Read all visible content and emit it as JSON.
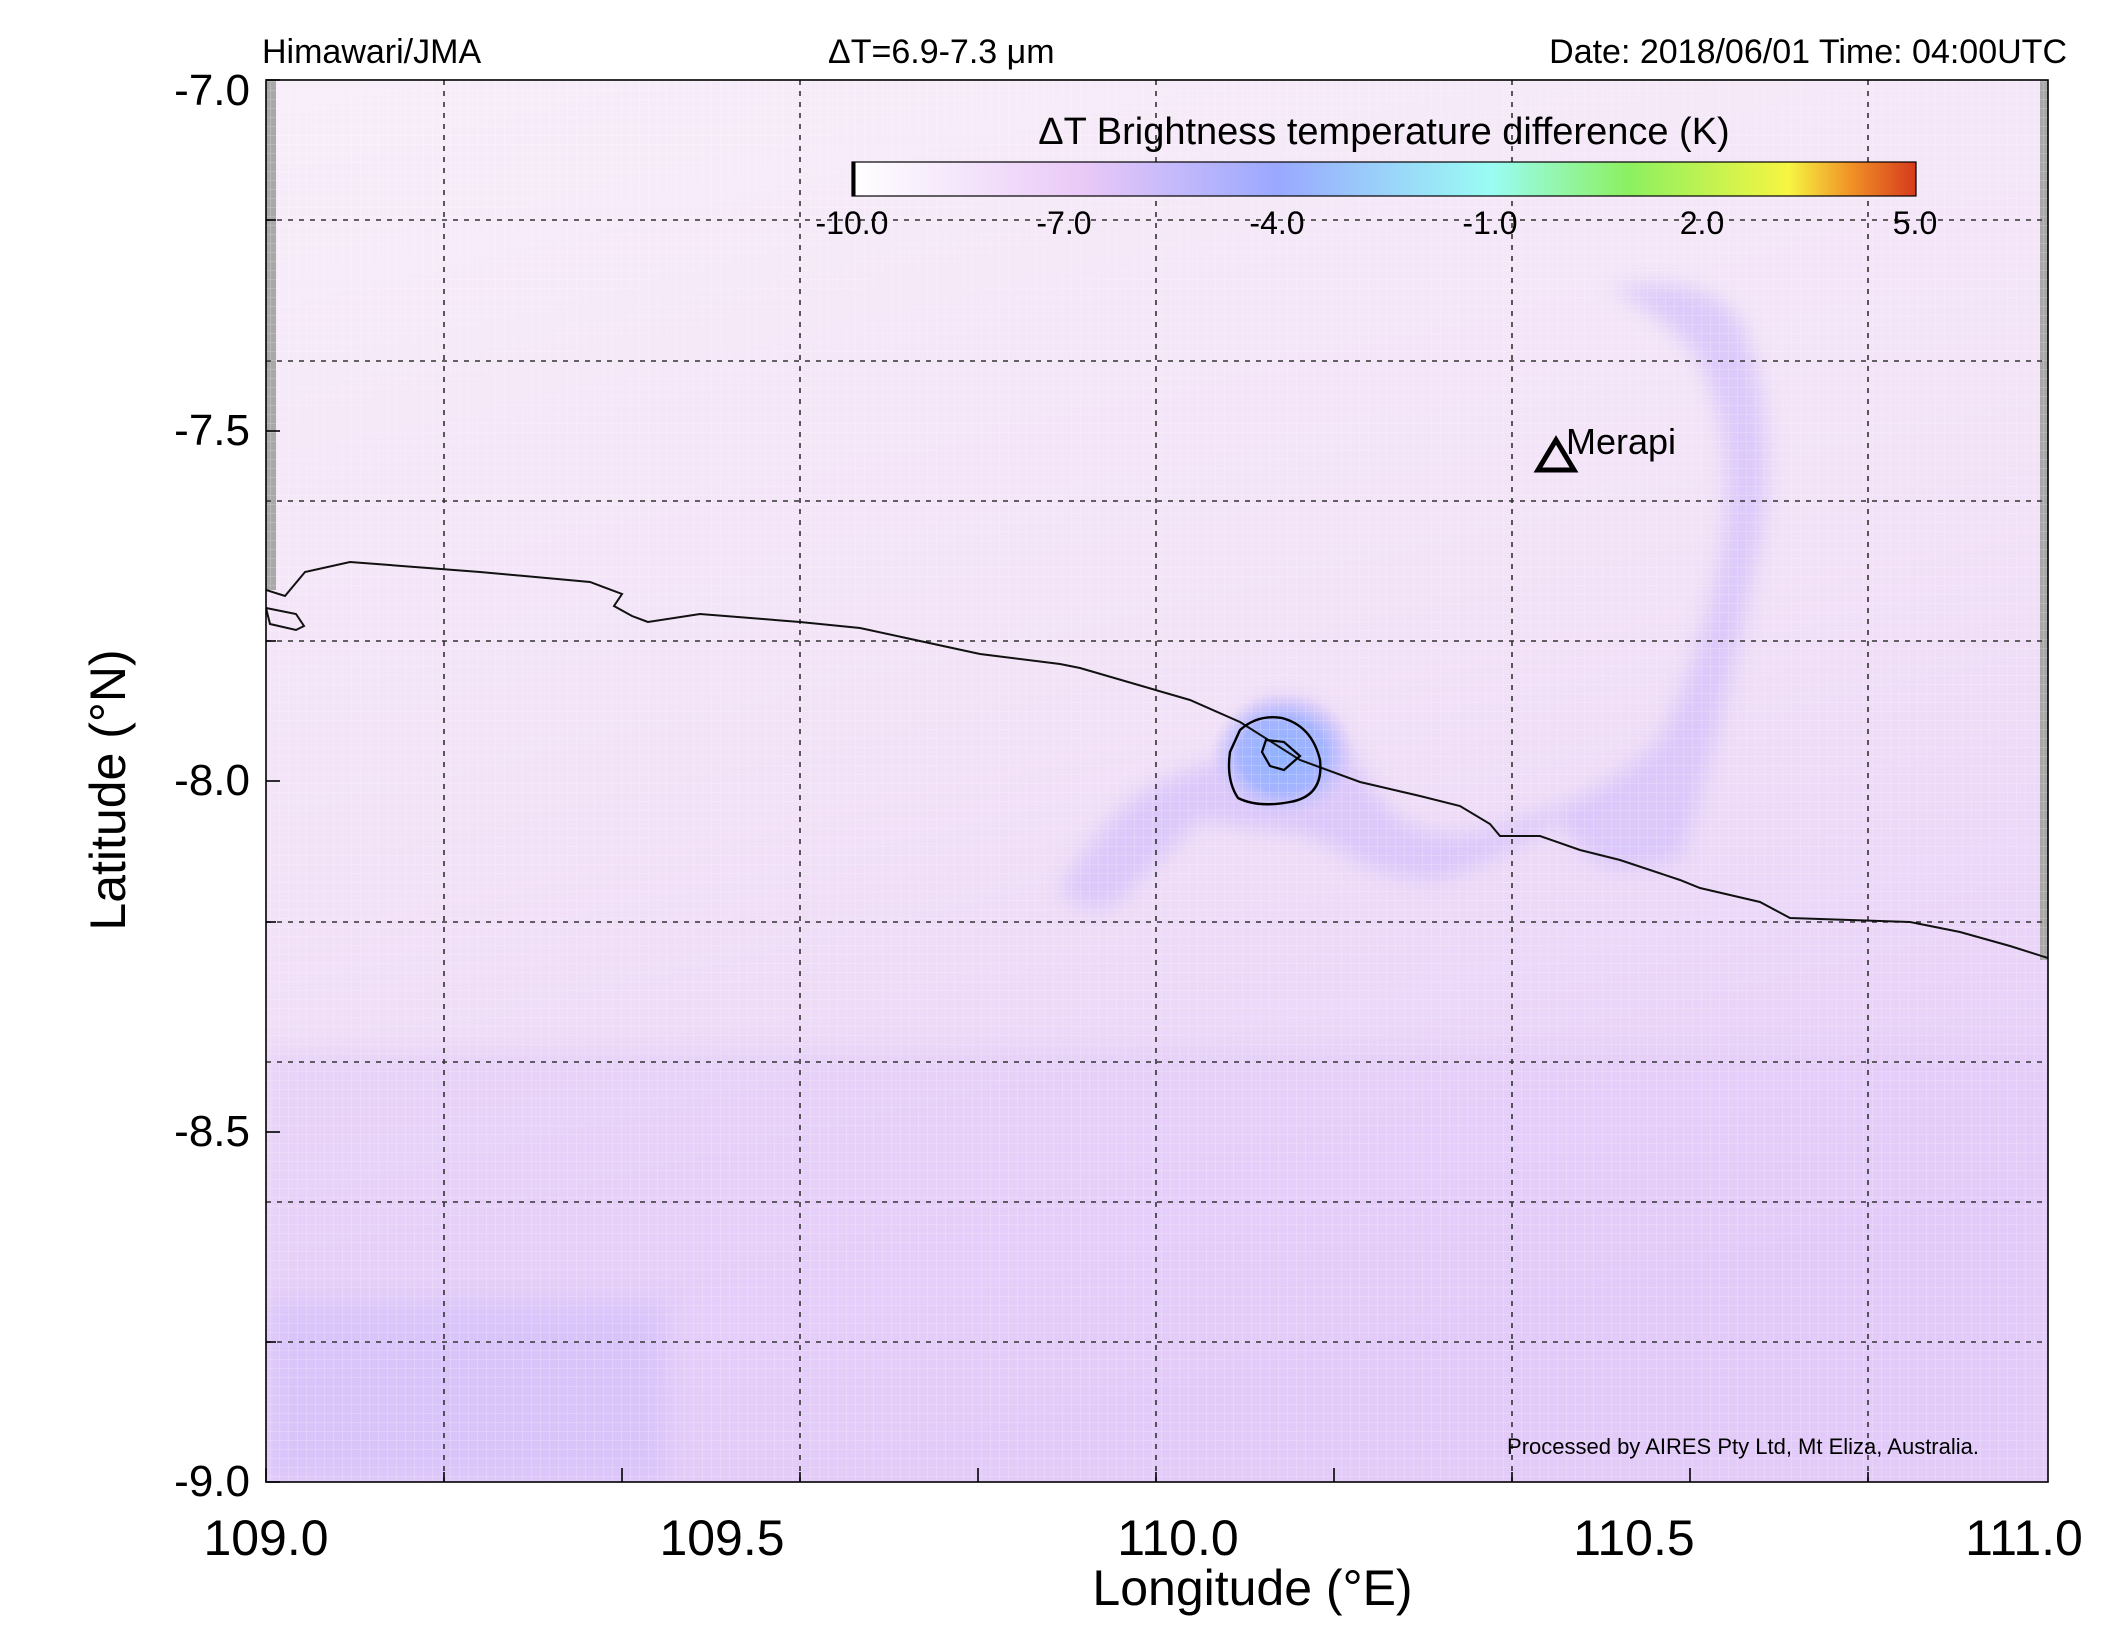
{
  "header": {
    "source": "Himawari/JMA",
    "band": "ΔT=6.9-7.3 μm",
    "datetime": "Date: 2018/06/01 Time: 04:00UTC"
  },
  "axes": {
    "xlabel": "Longitude (°E)",
    "ylabel": "Latitude (°N)",
    "x_ticks": [
      "109.0",
      "109.5",
      "110.0",
      "110.5",
      "111.0"
    ],
    "y_ticks": [
      "-7.0",
      "-7.5",
      "-8.0",
      "-8.5",
      "-9.0"
    ],
    "x_range": [
      109.0,
      111.0
    ],
    "y_range": [
      -9.0,
      -7.0
    ],
    "grid": "dashed, every 0.2°"
  },
  "colorbar": {
    "title": "ΔT Brightness temperature difference (K)",
    "ticks": [
      "-10.0",
      "-7.0",
      "-4.0",
      "-1.0",
      "2.0",
      "5.0"
    ],
    "range": [
      -10.0,
      5.0
    ],
    "colors": [
      "#ffffff",
      "#e9c8f7",
      "#9aa8ff",
      "#9afcf4",
      "#8cf060",
      "#f6f542",
      "#f09026",
      "#d63a1c"
    ]
  },
  "volcano": {
    "name": "Merapi",
    "lon": 110.44,
    "lat": -7.54
  },
  "credit": "Processed by AIRES Pty Ltd, Mt Eliza, Australia.",
  "colors": {
    "background_field": "#f4e8f7",
    "plume": "#dcc8f8",
    "anomaly_core": "#8fb0ff",
    "missing_data": "#a8a8a8"
  }
}
